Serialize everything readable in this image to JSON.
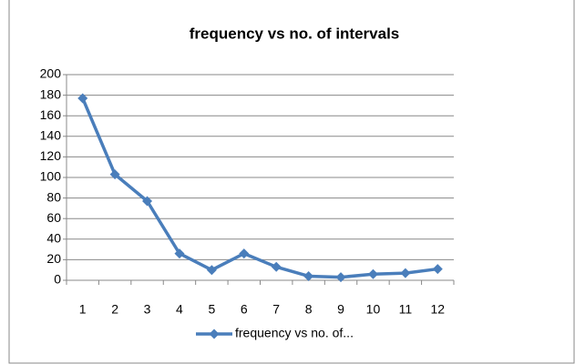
{
  "chart_data": {
    "type": "line",
    "title": "frequency vs no. of intervals",
    "categories": [
      "1",
      "2",
      "3",
      "4",
      "5",
      "6",
      "7",
      "8",
      "9",
      "10",
      "11",
      "12"
    ],
    "series": [
      {
        "name": "frequency vs no. of...",
        "color": "#4a7ebb",
        "values": [
          177,
          103,
          77,
          26,
          10,
          26,
          13,
          4,
          3,
          6,
          7,
          11
        ]
      }
    ],
    "ylim": [
      0,
      200
    ],
    "yticks": [
      0,
      20,
      40,
      60,
      80,
      100,
      120,
      140,
      160,
      180,
      200
    ],
    "grid": true,
    "legend": "bottom"
  }
}
